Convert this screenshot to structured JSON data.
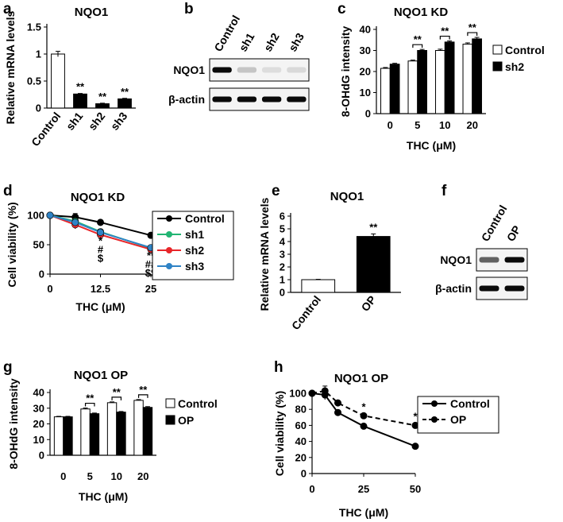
{
  "chart_data": [
    {
      "panel": "a",
      "type": "bar",
      "title": "NQO1",
      "ylabel": "Relative mRNA levels",
      "ylim": [
        0,
        1.5
      ],
      "yticks": [
        "0",
        "0.5",
        "1",
        "1.5"
      ],
      "categories": [
        "Control",
        "sh1",
        "sh2",
        "sh3"
      ],
      "values": [
        1.0,
        0.26,
        0.08,
        0.17
      ],
      "errors": [
        0.05,
        0.01,
        0.01,
        0.01
      ],
      "fills": [
        "#ffffff",
        "#000000",
        "#000000",
        "#000000"
      ],
      "annotations": [
        "",
        "**",
        "**",
        "**"
      ]
    },
    {
      "panel": "b",
      "type": "blot",
      "lanes": [
        "Control",
        "sh1",
        "sh2",
        "sh3"
      ],
      "rows": [
        {
          "label": "NQO1",
          "intensity": [
            1.0,
            0.15,
            0.04,
            0.06
          ]
        },
        {
          "label": "β-actin",
          "intensity": [
            1.0,
            1.0,
            1.0,
            1.0
          ]
        }
      ]
    },
    {
      "panel": "c",
      "type": "bar",
      "title": "NQO1 KD",
      "ylabel": "8-OHdG intensity",
      "xlabel": "THC (μM)",
      "ylim": [
        0,
        40
      ],
      "yticks": [
        "0",
        "10",
        "20",
        "30",
        "40"
      ],
      "categories": [
        "0",
        "5",
        "10",
        "20"
      ],
      "series": [
        {
          "name": "Control",
          "values": [
            21.5,
            25,
            30,
            33
          ],
          "errors": [
            0.4,
            0.4,
            0.6,
            0.6
          ],
          "fill": "#ffffff"
        },
        {
          "name": "sh2",
          "values": [
            23.5,
            30,
            34,
            35.5
          ],
          "errors": [
            0.4,
            0.5,
            0.5,
            0.7
          ],
          "fill": "#000000"
        }
      ],
      "annotations": [
        "",
        "**",
        "**",
        "**"
      ]
    },
    {
      "panel": "d",
      "type": "line",
      "title": "NQO1 KD",
      "ylabel": "Cell viability (%)",
      "xlabel": "THC (μM)",
      "ylim": [
        0,
        100
      ],
      "xlim": [
        0,
        25
      ],
      "yticks": [
        "0",
        "50",
        "100"
      ],
      "xticks": [
        "0",
        "12.5",
        "25"
      ],
      "x": [
        0,
        6.25,
        12.5,
        25
      ],
      "series": [
        {
          "name": "Control",
          "values": [
            100,
            97,
            88,
            66
          ],
          "errors": [
            0,
            6,
            2,
            4
          ],
          "color": "#000000"
        },
        {
          "name": "sh1",
          "values": [
            100,
            90,
            72,
            44
          ],
          "errors": [
            0,
            3,
            2,
            2
          ],
          "color": "#22b573"
        },
        {
          "name": "sh2",
          "values": [
            100,
            84,
            67,
            42
          ],
          "errors": [
            0,
            7,
            2,
            2
          ],
          "color": "#e8262a"
        },
        {
          "name": "sh3",
          "values": [
            100,
            88,
            71,
            45
          ],
          "errors": [
            0,
            4,
            2,
            2
          ],
          "color": "#2f83c6"
        }
      ],
      "annotations": [
        {
          "x": 12.5,
          "lines": [
            "*",
            "#",
            "$"
          ]
        },
        {
          "x": 25,
          "lines": [
            "**",
            "##",
            "$$"
          ]
        }
      ]
    },
    {
      "panel": "e",
      "type": "bar",
      "title": "NQO1",
      "ylabel": "Relative mRNA levels",
      "ylim": [
        0,
        6
      ],
      "yticks": [
        "0",
        "1",
        "2",
        "3",
        "4",
        "5",
        "6"
      ],
      "categories": [
        "Control",
        "OP"
      ],
      "values": [
        1.0,
        4.4
      ],
      "errors": [
        0.03,
        0.2
      ],
      "fills": [
        "#ffffff",
        "#000000"
      ],
      "annotations": [
        "",
        "**"
      ]
    },
    {
      "panel": "f",
      "type": "blot",
      "lanes": [
        "Control",
        "OP"
      ],
      "rows": [
        {
          "label": "NQO1",
          "intensity": [
            0.6,
            1.0
          ]
        },
        {
          "label": "β-actin",
          "intensity": [
            1.0,
            1.0
          ]
        }
      ]
    },
    {
      "panel": "g",
      "type": "bar",
      "title": "NQO1 OP",
      "ylabel": "8-OHdG intensity",
      "xlabel": "THC (μM)",
      "ylim": [
        0,
        40
      ],
      "yticks": [
        "0",
        "10",
        "20",
        "30",
        "40"
      ],
      "categories": [
        "0",
        "5",
        "10",
        "20"
      ],
      "series": [
        {
          "name": "Control",
          "values": [
            24.5,
            29.5,
            33.5,
            35
          ],
          "errors": [
            0.3,
            0.6,
            0.5,
            0.5
          ],
          "fill": "#ffffff"
        },
        {
          "name": "OP",
          "values": [
            24.5,
            26.5,
            27.5,
            30.5
          ],
          "errors": [
            0.3,
            0.4,
            0.4,
            0.5
          ],
          "fill": "#000000"
        }
      ],
      "annotations": [
        "",
        "**",
        "**",
        "**"
      ]
    },
    {
      "panel": "h",
      "type": "line",
      "title": "NQO1 OP",
      "ylabel": "Cell viability (%)",
      "xlabel": "THC (μM)",
      "ylim": [
        0,
        100
      ],
      "xlim": [
        0,
        50
      ],
      "yticks": [
        "0",
        "20",
        "40",
        "60",
        "80",
        "100"
      ],
      "xticks": [
        "0",
        "25",
        "50"
      ],
      "x": [
        0,
        6.25,
        12.5,
        25,
        50
      ],
      "series": [
        {
          "name": "Control",
          "values": [
            100,
            98,
            76,
            59,
            34
          ],
          "errors": [
            0,
            6,
            2,
            2,
            1
          ],
          "color": "#000000",
          "dashed": false
        },
        {
          "name": "OP",
          "values": [
            100,
            103,
            88,
            72,
            60
          ],
          "errors": [
            0,
            6,
            2,
            2,
            2
          ],
          "color": "#000000",
          "dashed": true
        }
      ],
      "annotations": [
        {
          "x": 25,
          "lines": [
            "*"
          ]
        },
        {
          "x": 50,
          "lines": [
            "*"
          ]
        }
      ]
    }
  ]
}
